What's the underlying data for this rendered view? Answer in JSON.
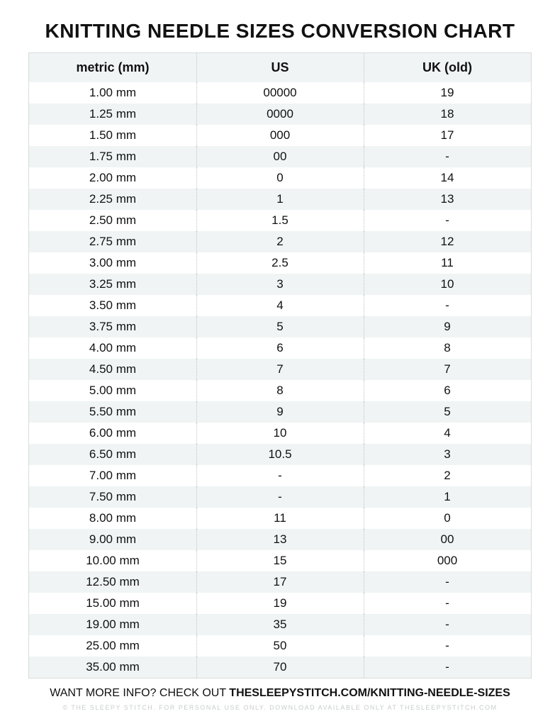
{
  "title": "KNITTING NEEDLE SIZES CONVERSION CHART",
  "columns": [
    "metric (mm)",
    "US",
    "UK (old)"
  ],
  "rows": [
    [
      "1.00 mm",
      "00000",
      "19"
    ],
    [
      "1.25 mm",
      "0000",
      "18"
    ],
    [
      "1.50 mm",
      "000",
      "17"
    ],
    [
      "1.75 mm",
      "00",
      "-"
    ],
    [
      "2.00 mm",
      "0",
      "14"
    ],
    [
      "2.25 mm",
      "1",
      "13"
    ],
    [
      "2.50 mm",
      "1.5",
      "-"
    ],
    [
      "2.75 mm",
      "2",
      "12"
    ],
    [
      "3.00 mm",
      "2.5",
      "11"
    ],
    [
      "3.25 mm",
      "3",
      "10"
    ],
    [
      "3.50 mm",
      "4",
      "-"
    ],
    [
      "3.75 mm",
      "5",
      "9"
    ],
    [
      "4.00 mm",
      "6",
      "8"
    ],
    [
      "4.50 mm",
      "7",
      "7"
    ],
    [
      "5.00 mm",
      "8",
      "6"
    ],
    [
      "5.50 mm",
      "9",
      "5"
    ],
    [
      "6.00 mm",
      "10",
      "4"
    ],
    [
      "6.50 mm",
      "10.5",
      "3"
    ],
    [
      "7.00 mm",
      "-",
      "2"
    ],
    [
      "7.50 mm",
      "-",
      "1"
    ],
    [
      "8.00 mm",
      "11",
      "0"
    ],
    [
      "9.00 mm",
      "13",
      "00"
    ],
    [
      "10.00 mm",
      "15",
      "000"
    ],
    [
      "12.50 mm",
      "17",
      "-"
    ],
    [
      "15.00 mm",
      "19",
      "-"
    ],
    [
      "19.00 mm",
      "35",
      "-"
    ],
    [
      "25.00 mm",
      "50",
      "-"
    ],
    [
      "35.00 mm",
      "70",
      "-"
    ]
  ],
  "footer_prefix": "WANT MORE INFO? CHECK OUT ",
  "footer_link": "THESLEEPYSTITCH.COM/KNITTING-NEEDLE-SIZES",
  "fine_print": "© THE SLEEPY STITCH. FOR PERSONAL USE ONLY. DOWNLOAD AVAILABLE ONLY AT THESLEEPYSTITCH.COM",
  "style": {
    "type": "table",
    "page_bg": "#ffffff",
    "stripe_bg": "#f0f4f4",
    "border_color": "#d8dcdc",
    "divider_color": "#bfc4c4",
    "text_color": "#111111",
    "fine_print_color": "#c9cccc",
    "title_fontsize": 28,
    "title_weight": 900,
    "header_fontsize": 18,
    "header_weight": 700,
    "cell_fontsize": 17,
    "footer_fontsize": 16,
    "fine_fontsize": 9,
    "row_vpadding": 5,
    "header_vpadding": 10,
    "column_count": 3,
    "divider_style": "dotted"
  }
}
